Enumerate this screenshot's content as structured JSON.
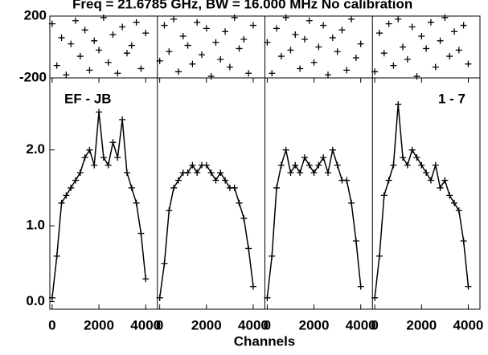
{
  "chart_data": {
    "type": "scatter",
    "title": "Freq = 21.6785 GHz, BW = 16.000 MHz   No calibration",
    "xlabel": "Channels",
    "x": [
      0,
      200,
      400,
      600,
      800,
      1000,
      1200,
      1400,
      1600,
      1800,
      2000,
      2200,
      2400,
      2600,
      2800,
      3000,
      3200,
      3400,
      3600,
      3800,
      4000
    ],
    "xlim": [
      -100,
      4500
    ],
    "xticks": [
      0,
      2000,
      4000
    ],
    "ylim": [
      -0.1,
      2.95
    ],
    "yticks": [
      {
        "value": 0,
        "label": "0.0"
      },
      {
        "value": 1,
        "label": "1.0"
      },
      {
        "value": 2,
        "label": "2.0"
      }
    ],
    "phase": {
      "ylim": [
        -200,
        200
      ],
      "yticks": [
        200,
        -200
      ]
    },
    "color": "#000000",
    "panels": [
      {
        "label": "EF - JB",
        "amplitude": [
          0.05,
          0.6,
          1.3,
          1.4,
          1.5,
          1.6,
          1.7,
          1.9,
          2.0,
          1.8,
          2.5,
          1.9,
          1.8,
          2.1,
          1.9,
          2.4,
          1.7,
          1.5,
          1.3,
          0.9,
          0.3
        ],
        "phase": [
          150,
          -120,
          60,
          -180,
          20,
          170,
          -60,
          110,
          -150,
          40,
          -20,
          190,
          -100,
          80,
          -170,
          130,
          -40,
          10,
          160,
          -140,
          90
        ]
      },
      {
        "amplitude": [
          0.05,
          0.5,
          1.2,
          1.5,
          1.6,
          1.7,
          1.7,
          1.8,
          1.7,
          1.8,
          1.8,
          1.7,
          1.6,
          1.7,
          1.6,
          1.5,
          1.5,
          1.3,
          1.1,
          0.7,
          0.2
        ],
        "phase": [
          -90,
          140,
          -30,
          180,
          -160,
          70,
          10,
          -110,
          160,
          -50,
          120,
          -190,
          30,
          -80,
          100,
          -130,
          190,
          -10,
          50,
          -170,
          140
        ]
      },
      {
        "amplitude": [
          0.05,
          0.6,
          1.5,
          1.8,
          2.0,
          1.7,
          1.8,
          1.7,
          1.9,
          1.8,
          1.7,
          1.8,
          1.9,
          1.7,
          2.0,
          1.8,
          1.6,
          1.6,
          1.3,
          0.8,
          0.2
        ],
        "phase": [
          30,
          -170,
          120,
          -60,
          190,
          -20,
          80,
          -140,
          50,
          170,
          -100,
          0,
          140,
          -180,
          60,
          -30,
          110,
          -150,
          180,
          -70,
          20
        ]
      },
      {
        "label": "1 - 7",
        "amplitude": [
          0.05,
          0.6,
          1.4,
          1.6,
          1.8,
          2.6,
          1.9,
          1.8,
          2.0,
          1.9,
          1.8,
          1.7,
          1.6,
          1.8,
          1.5,
          1.6,
          1.4,
          1.3,
          1.2,
          0.8,
          0.2
        ],
        "phase": [
          -160,
          90,
          -40,
          150,
          -120,
          180,
          0,
          -80,
          130,
          -190,
          70,
          -10,
          160,
          -130,
          40,
          190,
          -60,
          100,
          -20,
          140,
          -110
        ]
      }
    ]
  }
}
